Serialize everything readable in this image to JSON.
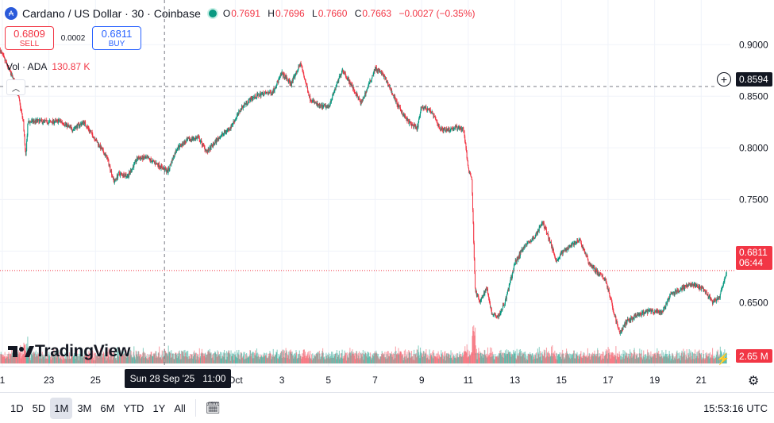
{
  "header": {
    "title": "Cardano / US Dollar · 30 · Coinbase",
    "ohlc": [
      {
        "key": "O",
        "value": "0.7691"
      },
      {
        "key": "H",
        "value": "0.7696"
      },
      {
        "key": "L",
        "value": "0.7660"
      },
      {
        "key": "C",
        "value": "0.7663"
      }
    ],
    "change": "−0.0027 (−0.35%)"
  },
  "trade": {
    "sell_price": "0.6809",
    "sell_label": "SELL",
    "spread": "0.0002",
    "buy_price": "0.6811",
    "buy_label": "BUY"
  },
  "volume": {
    "label": "Vol · ADA",
    "value": "130.87 K"
  },
  "tags": {
    "crosshair_price": "0.8594",
    "last_price": "0.6811",
    "countdown": "06:44",
    "last_volume": "2.65 M",
    "crosshair_date": "Sun 28 Sep '25",
    "crosshair_time": "11:00"
  },
  "watermark": "TradingView",
  "bottom": {
    "ranges": [
      "1D",
      "5D",
      "1M",
      "3M",
      "6M",
      "YTD",
      "1Y",
      "All"
    ],
    "active_range": "1M",
    "clock": "15:53:16 UTC"
  },
  "colors": {
    "up": "#089981",
    "down": "#f23645",
    "accent": "#2962ff"
  },
  "chart_data": {
    "type": "candlestick",
    "title": "Cardano / US Dollar · 30 · Coinbase",
    "interval": "30",
    "y_ticks": [
      "0.9000",
      "0.8500",
      "0.8000",
      "0.7500",
      "0.7000",
      "0.6500",
      "0.6000"
    ],
    "ylim": [
      0.588,
      0.9125
    ],
    "x_ticks": [
      {
        "label": "1",
        "day": 21
      },
      {
        "label": "23",
        "day": 23
      },
      {
        "label": "25",
        "day": 25
      },
      {
        "label": "Oct",
        "day": 31
      },
      {
        "label": "3",
        "day": 33
      },
      {
        "label": "5",
        "day": 35
      },
      {
        "label": "7",
        "day": 37
      },
      {
        "label": "9",
        "day": 39
      },
      {
        "label": "11",
        "day": 41
      },
      {
        "label": "13",
        "day": 43
      },
      {
        "label": "15",
        "day": 45
      },
      {
        "label": "17",
        "day": 47
      },
      {
        "label": "19",
        "day": 49
      },
      {
        "label": "21",
        "day": 51
      }
    ],
    "x_note": "day numbers count from 1 Sep 2025 (day 31 = 1 Oct); the axis prints the labels shown",
    "crosshair": {
      "day": 27.96,
      "price": 0.8594
    },
    "last_price": 0.6811,
    "price_path": [
      [
        20.9,
        0.895
      ],
      [
        21.2,
        0.88
      ],
      [
        21.6,
        0.86
      ],
      [
        21.9,
        0.825
      ],
      [
        22.0,
        0.79
      ],
      [
        22.1,
        0.825
      ],
      [
        22.5,
        0.826
      ],
      [
        23.0,
        0.825
      ],
      [
        23.5,
        0.826
      ],
      [
        24.0,
        0.818
      ],
      [
        24.5,
        0.825
      ],
      [
        25.0,
        0.808
      ],
      [
        25.5,
        0.79
      ],
      [
        25.8,
        0.767
      ],
      [
        26.0,
        0.775
      ],
      [
        26.4,
        0.773
      ],
      [
        26.8,
        0.79
      ],
      [
        27.2,
        0.79
      ],
      [
        27.6,
        0.785
      ],
      [
        28.1,
        0.777
      ],
      [
        28.5,
        0.8
      ],
      [
        29.0,
        0.808
      ],
      [
        29.4,
        0.81
      ],
      [
        29.8,
        0.796
      ],
      [
        30.3,
        0.81
      ],
      [
        30.8,
        0.82
      ],
      [
        31.3,
        0.84
      ],
      [
        31.7,
        0.848
      ],
      [
        32.1,
        0.852
      ],
      [
        32.6,
        0.854
      ],
      [
        33.0,
        0.872
      ],
      [
        33.4,
        0.862
      ],
      [
        33.8,
        0.882
      ],
      [
        34.2,
        0.848
      ],
      [
        34.6,
        0.84
      ],
      [
        35.0,
        0.84
      ],
      [
        35.3,
        0.858
      ],
      [
        35.6,
        0.876
      ],
      [
        36.0,
        0.86
      ],
      [
        36.4,
        0.843
      ],
      [
        36.8,
        0.865
      ],
      [
        37.0,
        0.877
      ],
      [
        37.3,
        0.872
      ],
      [
        37.6,
        0.86
      ],
      [
        38.0,
        0.84
      ],
      [
        38.4,
        0.826
      ],
      [
        38.8,
        0.818
      ],
      [
        39.0,
        0.84
      ],
      [
        39.4,
        0.836
      ],
      [
        39.8,
        0.818
      ],
      [
        40.2,
        0.818
      ],
      [
        40.5,
        0.82
      ],
      [
        40.8,
        0.818
      ],
      [
        41.0,
        0.78
      ],
      [
        41.15,
        0.77
      ],
      [
        41.3,
        0.662
      ],
      [
        41.5,
        0.65
      ],
      [
        41.8,
        0.665
      ],
      [
        42.0,
        0.64
      ],
      [
        42.3,
        0.637
      ],
      [
        42.6,
        0.652
      ],
      [
        43.0,
        0.688
      ],
      [
        43.4,
        0.705
      ],
      [
        43.8,
        0.712
      ],
      [
        44.2,
        0.728
      ],
      [
        44.5,
        0.71
      ],
      [
        44.8,
        0.69
      ],
      [
        45.0,
        0.698
      ],
      [
        45.4,
        0.706
      ],
      [
        45.8,
        0.71
      ],
      [
        46.2,
        0.688
      ],
      [
        46.6,
        0.678
      ],
      [
        46.9,
        0.672
      ],
      [
        47.2,
        0.645
      ],
      [
        47.5,
        0.62
      ],
      [
        47.8,
        0.632
      ],
      [
        48.3,
        0.638
      ],
      [
        48.8,
        0.642
      ],
      [
        49.3,
        0.64
      ],
      [
        49.7,
        0.658
      ],
      [
        50.1,
        0.663
      ],
      [
        50.5,
        0.668
      ],
      [
        50.9,
        0.665
      ],
      [
        51.2,
        0.66
      ],
      [
        51.5,
        0.65
      ],
      [
        51.8,
        0.656
      ],
      [
        52.0,
        0.672
      ],
      [
        52.1,
        0.6811
      ]
    ],
    "volume_scale": "tallest bar ≈ 2.65 M"
  }
}
